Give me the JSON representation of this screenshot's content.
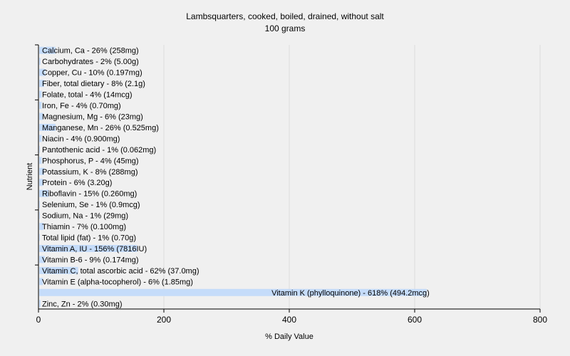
{
  "chart_data": {
    "type": "bar",
    "orientation": "horizontal",
    "title": "Lambsquarters, cooked, boiled, drained, without salt",
    "subtitle": "100 grams",
    "xlabel": "% Daily Value",
    "ylabel": "Nutrient",
    "xlim": [
      0,
      800
    ],
    "xticks": [
      0,
      200,
      400,
      600,
      800
    ],
    "grid": true,
    "bar_color": "#c5dcfa",
    "categories": [
      "Calcium, Ca",
      "Carbohydrates",
      "Copper, Cu",
      "Fiber, total dietary",
      "Folate, total",
      "Iron, Fe",
      "Magnesium, Mg",
      "Manganese, Mn",
      "Niacin",
      "Pantothenic acid",
      "Phosphorus, P",
      "Potassium, K",
      "Protein",
      "Riboflavin",
      "Selenium, Se",
      "Sodium, Na",
      "Thiamin",
      "Total lipid (fat)",
      "Vitamin A, IU",
      "Vitamin B-6",
      "Vitamin C, total ascorbic acid",
      "Vitamin E (alpha-tocopherol)",
      "Vitamin K (phylloquinone)",
      "Zinc, Zn"
    ],
    "values": [
      26,
      2,
      10,
      8,
      4,
      4,
      6,
      26,
      4,
      1,
      4,
      8,
      6,
      15,
      1,
      1,
      7,
      1,
      156,
      9,
      62,
      6,
      618,
      2
    ],
    "labels": [
      "Calcium, Ca - 26% (258mg)",
      "Carbohydrates - 2% (5.00g)",
      "Copper, Cu - 10% (0.197mg)",
      "Fiber, total dietary - 8% (2.1g)",
      "Folate, total - 4% (14mcg)",
      "Iron, Fe - 4% (0.70mg)",
      "Magnesium, Mg - 6% (23mg)",
      "Manganese, Mn - 26% (0.525mg)",
      "Niacin - 4% (0.900mg)",
      "Pantothenic acid - 1% (0.062mg)",
      "Phosphorus, P - 4% (45mg)",
      "Potassium, K - 8% (288mg)",
      "Protein - 6% (3.20g)",
      "Riboflavin - 15% (0.260mg)",
      "Selenium, Se - 1% (0.9mcg)",
      "Sodium, Na - 1% (29mg)",
      "Thiamin - 7% (0.100mg)",
      "Total lipid (fat) - 1% (0.70g)",
      "Vitamin A, IU - 156% (7816IU)",
      "Vitamin B-6 - 9% (0.174mg)",
      "Vitamin C, total ascorbic acid - 62% (37.0mg)",
      "Vitamin E (alpha-tocopherol) - 6% (1.85mg)",
      "Vitamin K (phylloquinone) - 618% (494.2mcg)",
      "Zinc, Zn - 2% (0.30mg)"
    ]
  }
}
